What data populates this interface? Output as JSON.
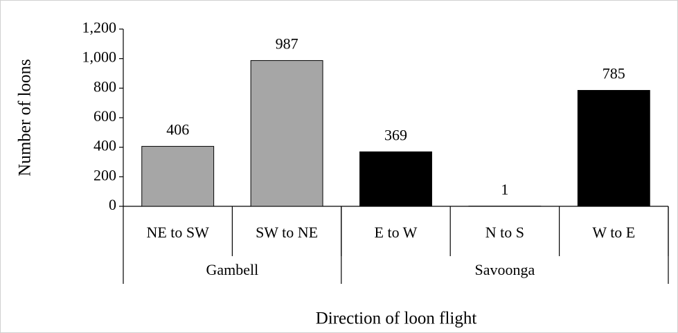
{
  "chart_data": {
    "type": "bar",
    "y_label": "Number of loons",
    "x_label": "Direction of loon flight",
    "groups": [
      {
        "name": "Gambell",
        "color": "#a6a6a6",
        "categories": [
          "NE to SW",
          "SW to NE"
        ],
        "values": [
          406,
          987
        ]
      },
      {
        "name": "Savoonga",
        "color": "#000000",
        "categories": [
          "E to W",
          "N to S",
          "W to E"
        ],
        "values": [
          369,
          1,
          785
        ]
      }
    ],
    "ylim": [
      0,
      1200
    ],
    "yticks": [
      0,
      200,
      400,
      600,
      800,
      {
        "value": 1000,
        "label": "1,000"
      },
      {
        "value": 1200,
        "label": "1,200"
      }
    ],
    "grid": false
  }
}
